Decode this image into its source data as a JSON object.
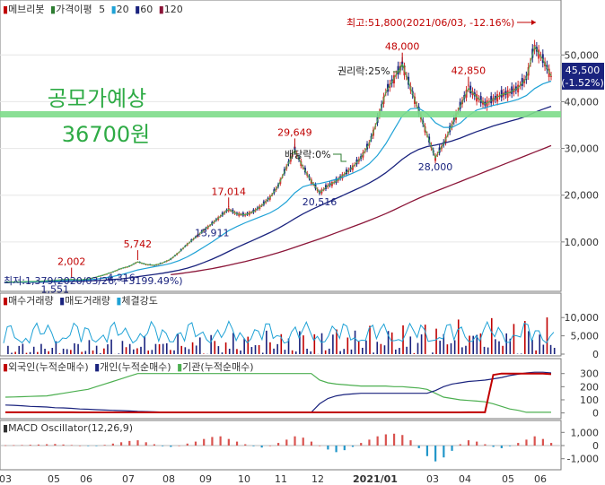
{
  "legend_main": [
    {
      "text": "메브리봇",
      "color": "#c00000",
      "marker": "■"
    },
    {
      "text": "가격이평",
      "color": "#2e7d32",
      "marker": "■"
    },
    {
      "text": "5",
      "color": "#4caf50"
    },
    {
      "text": "20",
      "color": "#1fa2d6",
      "marker": "■"
    },
    {
      "text": "60",
      "color": "#1a237e",
      "marker": "■"
    },
    {
      "text": "120",
      "color": "#8b1538",
      "marker": "■"
    }
  ],
  "annotations": {
    "high_note": "최고:51,800(2021/06/03, -12.16%)",
    "low_note": "최저:1,379(2020/03/26, +3199.49%)",
    "ipo_title": "공모가예상",
    "ipo_price": "36700원",
    "rights": "권리락:25%",
    "dividend": "배당락:0%",
    "current_price": "45,500",
    "current_change": "(-1.52%)"
  },
  "price_labels": [
    {
      "text": "2,002",
      "kind": "high"
    },
    {
      "text": "1,551",
      "kind": "low"
    },
    {
      "text": "5,742",
      "kind": "high"
    },
    {
      "text": "4,316",
      "kind": "low"
    },
    {
      "text": "17,014",
      "kind": "high"
    },
    {
      "text": "13,911",
      "kind": "low"
    },
    {
      "text": "29,649",
      "kind": "high"
    },
    {
      "text": "20,516",
      "kind": "low"
    },
    {
      "text": "48,000",
      "kind": "high"
    },
    {
      "text": "28,000",
      "kind": "low"
    },
    {
      "text": "42,850",
      "kind": "high"
    }
  ],
  "legend_volume": [
    {
      "text": "매수거래량",
      "color": "#c00000",
      "marker": "■"
    },
    {
      "text": "매도거래량",
      "color": "#1a237e",
      "marker": "■"
    },
    {
      "text": "체결강도",
      "color": "#1fa2d6",
      "marker": "■"
    }
  ],
  "legend_investor": [
    {
      "text": "외국인(누적순매수)",
      "color": "#c00000",
      "marker": "■"
    },
    {
      "text": "개인(누적순매수)",
      "color": "#1a237e",
      "marker": "■"
    },
    {
      "text": "기관(누적순매수)",
      "color": "#4caf50",
      "marker": "■"
    }
  ],
  "legend_macd": [
    {
      "text": "MACD Oscillator(12,26,9)",
      "color": "#333333",
      "marker": "■"
    }
  ],
  "chart_data": {
    "type": "line",
    "price_axis": {
      "ticks": [
        "50,000",
        "40,000",
        "30,000",
        "20,000",
        "10,000"
      ],
      "values": [
        50000,
        40000,
        30000,
        20000,
        10000
      ],
      "ylim": [
        0,
        56000
      ]
    },
    "volume_axis": {
      "ticks": [
        "10,000",
        "5,000",
        "0"
      ],
      "values": [
        10000,
        5000,
        0
      ],
      "ylim": [
        0,
        13000
      ]
    },
    "investor_axis": {
      "ticks": [
        "300",
        "200",
        "100",
        "0"
      ],
      "values": [
        300,
        200,
        100,
        0
      ],
      "ylim": [
        -30,
        380
      ]
    },
    "macd_axis": {
      "ticks": [
        "1,000",
        "0",
        "-1,000"
      ],
      "values": [
        1000,
        0,
        -1000
      ],
      "ylim": [
        -1700,
        1700
      ]
    },
    "x_labels": [
      "03",
      "05",
      "06",
      "07",
      "08",
      "09",
      "10",
      "11",
      "12",
      "2021/01",
      "03",
      "04",
      "05",
      "06"
    ],
    "price_close": [
      1400,
      1450,
      1500,
      1550,
      1600,
      1700,
      1800,
      1950,
      2002,
      1900,
      2100,
      2500,
      3000,
      3600,
      4316,
      4800,
      5742,
      5200,
      5000,
      5500,
      6300,
      7800,
      9500,
      11000,
      12500,
      13911,
      15500,
      17014,
      16000,
      15800,
      16500,
      17800,
      19500,
      22000,
      26000,
      29649,
      26000,
      23000,
      20516,
      22000,
      23000,
      24500,
      26000,
      28000,
      31000,
      36000,
      42000,
      45000,
      48000,
      43000,
      38000,
      33000,
      28000,
      31000,
      35000,
      39000,
      42850,
      41000,
      39500,
      40500,
      41500,
      42000,
      43000,
      45000,
      51800,
      49000,
      45500
    ],
    "ma20": [
      1400,
      1410,
      1430,
      1460,
      1500,
      1550,
      1620,
      1700,
      1780,
      1830,
      1900,
      2050,
      2300,
      2600,
      3000,
      3500,
      4000,
      4350,
      4700,
      5000,
      5400,
      6000,
      6800,
      7800,
      8900,
      10000,
      11200,
      12400,
      13300,
      14100,
      14800,
      15500,
      16200,
      17200,
      18600,
      20500,
      21800,
      22300,
      22500,
      22900,
      23400,
      24000,
      24700,
      25500,
      26700,
      28500,
      31000,
      34000,
      37000,
      38500,
      38600,
      37500,
      35500,
      34500,
      34500,
      35400,
      37000,
      38200,
      38700,
      39200,
      39600,
      40000,
      40500,
      41300,
      42800,
      43800,
      44400
    ],
    "ma60": [
      1350,
      1360,
      1370,
      1385,
      1400,
      1420,
      1450,
      1490,
      1530,
      1580,
      1640,
      1720,
      1820,
      1950,
      2100,
      2300,
      2550,
      2800,
      3050,
      3300,
      3600,
      3950,
      4400,
      4950,
      5600,
      6300,
      7100,
      7950,
      8800,
      9600,
      10400,
      11200,
      12000,
      12900,
      13900,
      15000,
      16000,
      16900,
      17700,
      18500,
      19300,
      20100,
      20900,
      21700,
      22600,
      23600,
      24800,
      26200,
      27700,
      28900,
      29800,
      30400,
      30700,
      31100,
      31600,
      32200,
      32900,
      33600,
      34200,
      34800,
      35300,
      35800,
      36300,
      36900,
      37700,
      38400,
      39000
    ],
    "ma120": [
      null,
      null,
      null,
      null,
      null,
      null,
      null,
      null,
      null,
      null,
      null,
      null,
      null,
      null,
      null,
      null,
      null,
      null,
      null,
      null,
      3000,
      3200,
      3450,
      3700,
      4000,
      4300,
      4650,
      5000,
      5400,
      5800,
      6250,
      6700,
      7200,
      7700,
      8250,
      8850,
      9450,
      10050,
      10650,
      11300,
      11950,
      12600,
      13250,
      13900,
      14600,
      15300,
      16050,
      16850,
      17700,
      18550,
      19350,
      20100,
      20800,
      21500,
      22200,
      22900,
      23600,
      24300,
      25000,
      25700,
      26400,
      27100,
      27800,
      28500,
      29200,
      29900,
      30600
    ],
    "investor": {
      "foreign": [
        5,
        5,
        5,
        5,
        5,
        5,
        5,
        5,
        5,
        4,
        4,
        4,
        4,
        4,
        4,
        4,
        4,
        4,
        4,
        4,
        4,
        4,
        4,
        4,
        4,
        4,
        4,
        4,
        4,
        4,
        4,
        4,
        4,
        4,
        4,
        4,
        4,
        4,
        4,
        4,
        4,
        4,
        4,
        4,
        4,
        4,
        4,
        4,
        4,
        4,
        4,
        4,
        4,
        4,
        4,
        4,
        5,
        5,
        5,
        290,
        300,
        300,
        300,
        300,
        300,
        300,
        295
      ],
      "individual": [
        60,
        58,
        55,
        50,
        48,
        45,
        40,
        38,
        35,
        30,
        28,
        25,
        22,
        20,
        18,
        15,
        12,
        10,
        8,
        6,
        5,
        5,
        5,
        5,
        5,
        5,
        5,
        5,
        5,
        5,
        5,
        5,
        5,
        5,
        5,
        5,
        5,
        5,
        70,
        110,
        130,
        140,
        145,
        150,
        150,
        150,
        150,
        150,
        150,
        150,
        150,
        150,
        170,
        200,
        220,
        230,
        240,
        245,
        250,
        260,
        270,
        285,
        295,
        305,
        310,
        310,
        305
      ],
      "institution": [
        120,
        122,
        124,
        126,
        128,
        130,
        140,
        150,
        160,
        170,
        180,
        200,
        220,
        240,
        260,
        280,
        300,
        300,
        300,
        300,
        300,
        300,
        300,
        300,
        300,
        300,
        300,
        300,
        300,
        300,
        300,
        300,
        300,
        300,
        300,
        300,
        300,
        300,
        250,
        230,
        220,
        215,
        210,
        205,
        205,
        205,
        205,
        200,
        200,
        195,
        190,
        180,
        150,
        120,
        110,
        100,
        95,
        90,
        85,
        70,
        50,
        30,
        20,
        5,
        5,
        5,
        5
      ]
    },
    "macd": [
      20,
      30,
      40,
      60,
      80,
      100,
      120,
      80,
      40,
      0,
      -30,
      -10,
      50,
      150,
      250,
      350,
      400,
      250,
      100,
      -50,
      -100,
      0,
      150,
      300,
      500,
      650,
      700,
      500,
      300,
      100,
      -50,
      -150,
      0,
      200,
      450,
      700,
      600,
      300,
      0,
      -300,
      -500,
      -350,
      -100,
      200,
      450,
      700,
      850,
      900,
      800,
      400,
      -200,
      -800,
      -1200,
      -900,
      -400,
      100,
      400,
      300,
      100,
      -100,
      -200,
      -50,
      200,
      450,
      700,
      500,
      200
    ]
  }
}
